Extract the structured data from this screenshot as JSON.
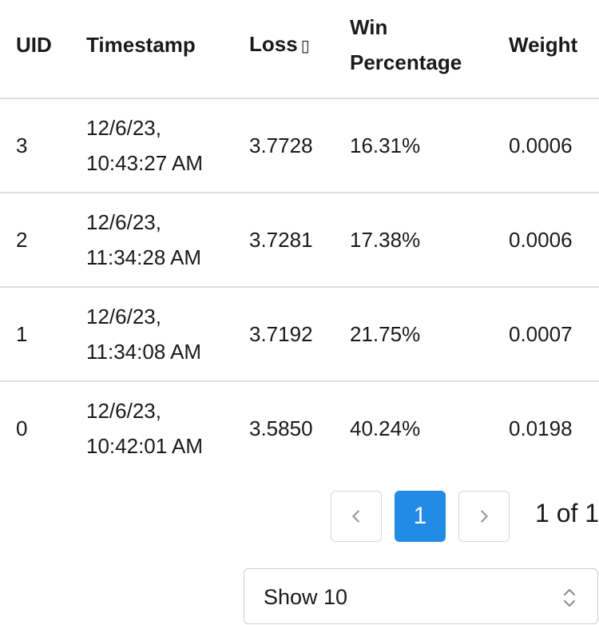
{
  "table": {
    "columns": {
      "uid": "UID",
      "timestamp": "Timestamp",
      "loss": "Loss",
      "loss_sort_glyph": "▯",
      "win_percentage": "Win Percentage",
      "weight": "Weight"
    },
    "rows": [
      {
        "uid": "3",
        "timestamp_date": "12/6/23,",
        "timestamp_time": "10:43:27 AM",
        "loss": "3.7728",
        "win_percentage": "16.31%",
        "weight": "0.0006"
      },
      {
        "uid": "2",
        "timestamp_date": "12/6/23,",
        "timestamp_time": "11:34:28 AM",
        "loss": "3.7281",
        "win_percentage": "17.38%",
        "weight": "0.0006"
      },
      {
        "uid": "1",
        "timestamp_date": "12/6/23,",
        "timestamp_time": "11:34:08 AM",
        "loss": "3.7192",
        "win_percentage": "21.75%",
        "weight": "0.0007"
      },
      {
        "uid": "0",
        "timestamp_date": "12/6/23,",
        "timestamp_time": "10:42:01 AM",
        "loss": "3.5850",
        "win_percentage": "40.24%",
        "weight": "0.0198"
      }
    ]
  },
  "pagination": {
    "current_page": "1",
    "page_info": "1 of 1",
    "prev_icon": "chevron-left-icon",
    "next_icon": "chevron-right-icon"
  },
  "page_size_select": {
    "value": "Show 10",
    "icon": "chevron-up-down-icon"
  },
  "colors": {
    "accent": "#228be6",
    "border": "#dddddd",
    "text": "#1a1a1a"
  }
}
